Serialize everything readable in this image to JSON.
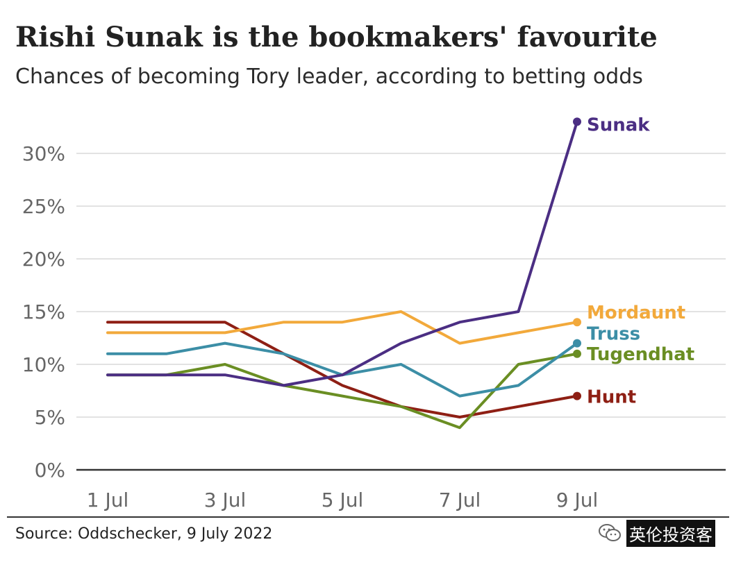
{
  "title": "Rishi Sunak is the bookmakers' favourite",
  "subtitle": "Chances of becoming Tory leader, according to betting odds",
  "source": "Source: Oddschecker, 9 July 2022",
  "watermark": "英伦投资客",
  "chart_data": {
    "type": "line",
    "x": [
      "1 Jul",
      "2 Jul",
      "3 Jul",
      "4 Jul",
      "5 Jul",
      "6 Jul",
      "7 Jul",
      "8 Jul",
      "9 Jul"
    ],
    "x_tick_labels": [
      "1 Jul",
      "3 Jul",
      "5 Jul",
      "7 Jul",
      "9 Jul"
    ],
    "y_tick_labels": [
      "0%",
      "5%",
      "10%",
      "15%",
      "20%",
      "25%",
      "30%"
    ],
    "ylim": [
      0,
      33
    ],
    "grid": true,
    "series": [
      {
        "name": "Sunak",
        "color": "#4b2e83",
        "values": [
          9,
          9,
          9,
          8,
          9,
          12,
          14,
          15,
          33
        ]
      },
      {
        "name": "Mordaunt",
        "color": "#f2a93b",
        "values": [
          13,
          13,
          13,
          14,
          14,
          15,
          12,
          13,
          14
        ]
      },
      {
        "name": "Truss",
        "color": "#3c8ea6",
        "values": [
          11,
          11,
          12,
          11,
          9,
          10,
          7,
          8,
          12
        ]
      },
      {
        "name": "Tugendhat",
        "color": "#6a8e23",
        "values": [
          9,
          9,
          10,
          8,
          7,
          6,
          4,
          10,
          11
        ]
      },
      {
        "name": "Hunt",
        "color": "#8e1f14",
        "values": [
          14,
          14,
          14,
          11,
          8,
          6,
          5,
          6,
          7
        ]
      }
    ]
  }
}
